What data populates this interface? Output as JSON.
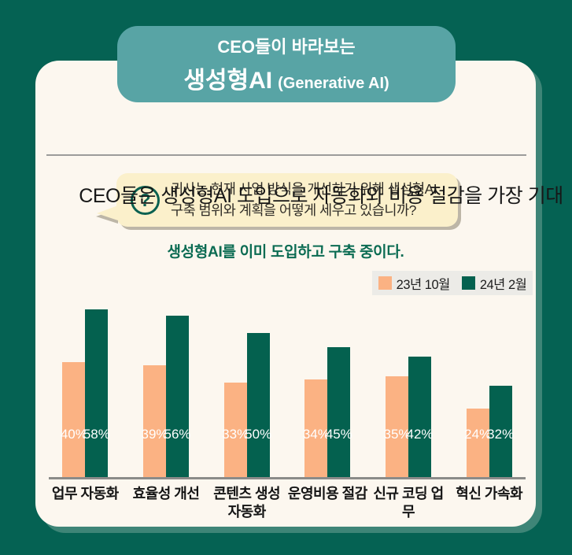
{
  "badge": {
    "line1": "CEO들이 바라보는",
    "title": "생성형AI",
    "title_sub": "(Generative AI)"
  },
  "headline": "CEO들은 생성형AI 도입으로 자동화와 비용 절감을 가장 기대",
  "question_bubble": {
    "icon": "question-mark",
    "line1": "귀사는 현재 사업 방식을 개선하기 위해 생성형AI",
    "line2": "구축 범위와 계획을 어떻게 세우고 있습니까?"
  },
  "subtitle": "생성형AI를 이미 도입하고 구축 중이다.",
  "chart_data": {
    "type": "bar",
    "title": "생성형AI를 이미 도입하고 구축 중이다.",
    "categories": [
      "업무 자동화",
      "효율성 개선",
      "콘텐츠 생성\n자동화",
      "운영비용 절감",
      "신규 코딩 업무",
      "혁신 가속화"
    ],
    "series": [
      {
        "name": "23년 10월",
        "color": "#FBB283",
        "values": [
          40,
          39,
          33,
          34,
          35,
          24
        ]
      },
      {
        "name": "24년 2월",
        "color": "#04614F",
        "values": [
          58,
          56,
          50,
          45,
          42,
          32
        ]
      }
    ],
    "value_suffix": "%",
    "ylim": [
      0,
      60
    ],
    "grid": false,
    "legend_position": "top-right"
  },
  "colors": {
    "background": "#056253",
    "badge": "#58A4A5",
    "card": "#FCF7EF",
    "card_shadow": "#3E8577",
    "bubble": "#FBF0CB",
    "accent_green": "#0A6150",
    "subtitle_green": "#0A6B52",
    "legend_bg": "#ECEBE7",
    "axis": "#8B8B89",
    "bar_orange": "#FBB283",
    "bar_green": "#04614F"
  }
}
